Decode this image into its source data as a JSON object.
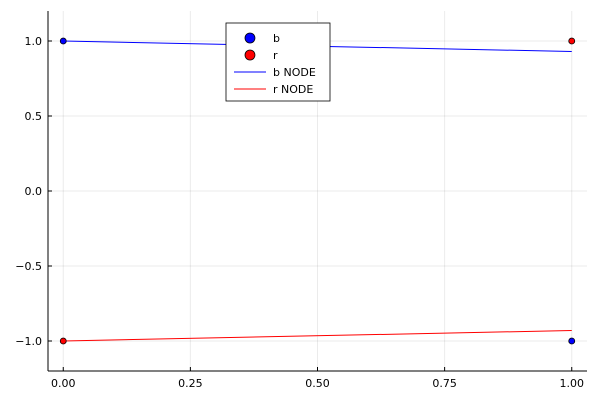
{
  "chart_data": {
    "type": "scatter",
    "title": "",
    "xlabel": "",
    "ylabel": "",
    "xlim": [
      -0.03,
      1.03
    ],
    "ylim": [
      -1.2,
      1.2
    ],
    "x_ticks": [
      0.0,
      0.25,
      0.5,
      0.75,
      1.0
    ],
    "x_tick_labels": [
      "0.00",
      "0.25",
      "0.50",
      "0.75",
      "1.00"
    ],
    "y_ticks": [
      -1.0,
      -0.5,
      0.0,
      0.5,
      1.0
    ],
    "y_tick_labels": [
      "−1.0",
      "−0.5",
      "0.0",
      "0.5",
      "1.0"
    ],
    "grid": true,
    "legend_position": "top-center",
    "series": [
      {
        "name": "b",
        "kind": "scatter",
        "color": "#0000ff",
        "x": [
          0.0,
          1.0
        ],
        "y": [
          1.0,
          -1.0
        ]
      },
      {
        "name": "r",
        "kind": "scatter",
        "color": "#ff0000",
        "x": [
          0.0,
          1.0
        ],
        "y": [
          -1.0,
          1.0
        ]
      },
      {
        "name": "b NODE",
        "kind": "line",
        "color": "#0000ff",
        "x": [
          0.0,
          1.0
        ],
        "y": [
          1.0,
          0.93
        ]
      },
      {
        "name": "r NODE",
        "kind": "line",
        "color": "#ff0000",
        "x": [
          0.0,
          1.0
        ],
        "y": [
          -1.0,
          -0.93
        ]
      }
    ]
  }
}
